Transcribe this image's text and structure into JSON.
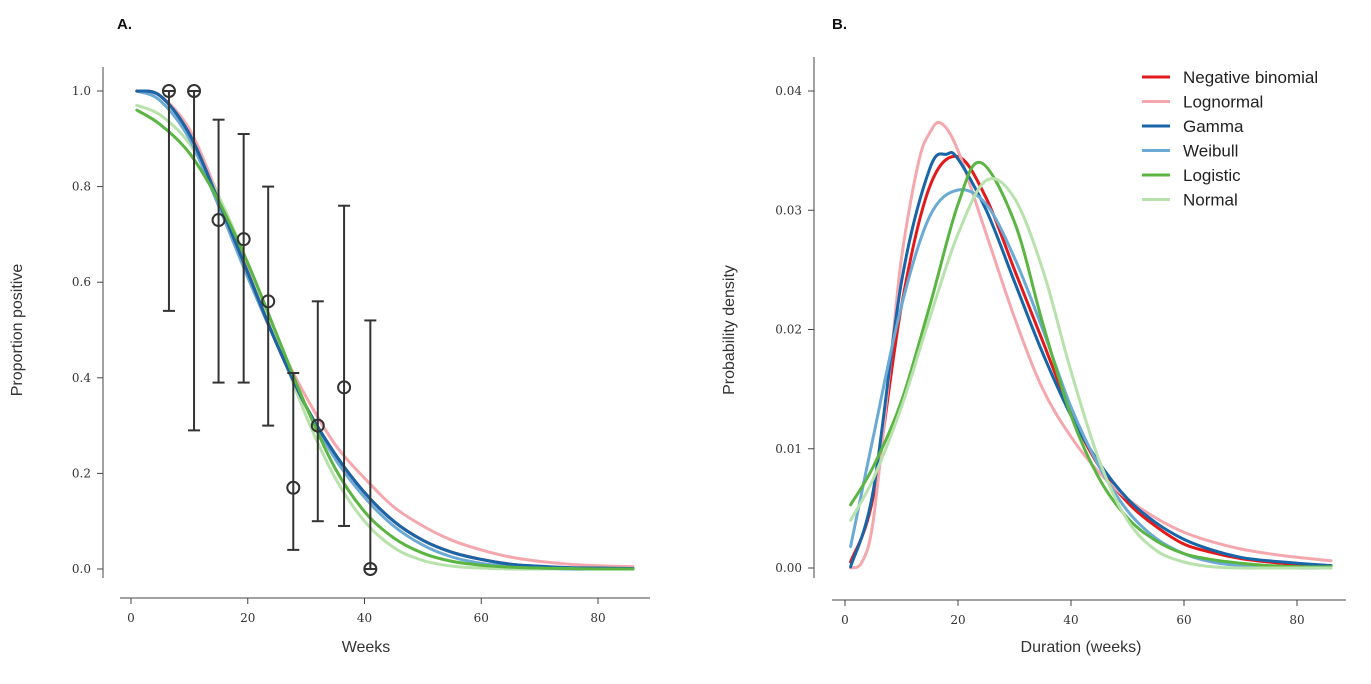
{
  "chart_data": [
    {
      "panel": "A.",
      "type": "line",
      "xlabel": "Weeks",
      "ylabel": "Proportion positive",
      "xlim": [
        0,
        88
      ],
      "ylim": [
        0,
        1
      ],
      "xticks": [
        0,
        20,
        40,
        60,
        80
      ],
      "yticks": [
        0.0,
        0.2,
        0.4,
        0.6,
        0.8,
        1.0
      ],
      "ytick_labels": [
        "0.0",
        "0.2",
        "0.4",
        "0.6",
        "0.8",
        "1.0"
      ],
      "grid": false,
      "observed": {
        "x": [
          6.5,
          10.8,
          15.0,
          19.3,
          23.5,
          27.8,
          32.0,
          36.5,
          41.0
        ],
        "y": [
          1.0,
          1.0,
          0.73,
          0.69,
          0.56,
          0.17,
          0.3,
          0.38,
          0.0
        ],
        "ci_low": [
          0.54,
          0.29,
          0.39,
          0.39,
          0.3,
          0.04,
          0.1,
          0.09,
          0.0
        ],
        "ci_high": [
          1.0,
          1.0,
          0.94,
          0.91,
          0.8,
          0.41,
          0.56,
          0.76,
          0.52
        ]
      },
      "series": [
        {
          "color": "#f4a8ae",
          "x": [
            1,
            5,
            10,
            15,
            20,
            25,
            30,
            35,
            40,
            45,
            50,
            55,
            60,
            65,
            70,
            75,
            80,
            86
          ],
          "y": [
            1.0,
            0.99,
            0.92,
            0.78,
            0.63,
            0.48,
            0.36,
            0.26,
            0.19,
            0.13,
            0.09,
            0.06,
            0.04,
            0.025,
            0.016,
            0.01,
            0.007,
            0.005
          ]
        },
        {
          "color": "#b8e2ab",
          "x": [
            1,
            5,
            10,
            15,
            20,
            25,
            30,
            35,
            40,
            45,
            50,
            55,
            60,
            65,
            70,
            75,
            80,
            86
          ],
          "y": [
            0.97,
            0.95,
            0.89,
            0.78,
            0.64,
            0.48,
            0.32,
            0.19,
            0.1,
            0.045,
            0.018,
            0.006,
            0.002,
            0.0,
            0.0,
            0.0,
            0.0,
            0.0
          ]
        },
        {
          "color": "#6aaad4",
          "x": [
            1,
            5,
            10,
            15,
            20,
            25,
            30,
            35,
            40,
            45,
            50,
            55,
            60,
            65,
            70,
            75,
            80,
            86
          ],
          "y": [
            1.0,
            0.98,
            0.9,
            0.76,
            0.61,
            0.47,
            0.34,
            0.23,
            0.15,
            0.09,
            0.05,
            0.025,
            0.012,
            0.005,
            0.002,
            0.0,
            0.0,
            0.0
          ]
        },
        {
          "color": "#e31a1c",
          "x": [
            1,
            5,
            10,
            15,
            20,
            25,
            30,
            35,
            40,
            45,
            50,
            55,
            60,
            65,
            70,
            75,
            80,
            86
          ],
          "y": [
            1.0,
            0.99,
            0.91,
            0.77,
            0.62,
            0.47,
            0.34,
            0.24,
            0.16,
            0.1,
            0.06,
            0.035,
            0.02,
            0.01,
            0.005,
            0.002,
            0.001,
            0.0
          ]
        },
        {
          "color": "#1865a8",
          "x": [
            1,
            5,
            10,
            15,
            20,
            25,
            30,
            35,
            40,
            45,
            50,
            55,
            60,
            65,
            70,
            75,
            80,
            86
          ],
          "y": [
            1.0,
            0.99,
            0.91,
            0.77,
            0.62,
            0.47,
            0.34,
            0.24,
            0.16,
            0.1,
            0.06,
            0.035,
            0.02,
            0.01,
            0.006,
            0.003,
            0.002,
            0.001
          ]
        },
        {
          "color": "#5bb543",
          "x": [
            1,
            5,
            10,
            15,
            20,
            25,
            30,
            35,
            40,
            45,
            50,
            55,
            60,
            65,
            70,
            75,
            80,
            86
          ],
          "y": [
            0.96,
            0.93,
            0.87,
            0.77,
            0.64,
            0.49,
            0.34,
            0.21,
            0.12,
            0.065,
            0.033,
            0.016,
            0.008,
            0.004,
            0.002,
            0.001,
            0.0,
            0.0
          ]
        }
      ]
    },
    {
      "panel": "B.",
      "type": "line",
      "xlabel": "Duration (weeks)",
      "ylabel": "Probability density",
      "xlim": [
        -2,
        88
      ],
      "ylim": [
        0,
        0.04
      ],
      "xticks": [
        0,
        20,
        40,
        60,
        80
      ],
      "yticks": [
        0.0,
        0.01,
        0.02,
        0.03,
        0.04
      ],
      "ytick_labels": [
        "0.00",
        "0.01",
        "0.02",
        "0.03",
        "0.04"
      ],
      "grid": false,
      "legend": "top-right",
      "series": [
        {
          "name": "Negative binomial",
          "color": "#e31a1c",
          "x": [
            1,
            5,
            10,
            15,
            20,
            25,
            30,
            35,
            40,
            45,
            50,
            55,
            60,
            65,
            70,
            75,
            80,
            86
          ],
          "y": [
            0.0005,
            0.006,
            0.022,
            0.032,
            0.0345,
            0.031,
            0.025,
            0.019,
            0.013,
            0.0085,
            0.0055,
            0.0035,
            0.002,
            0.0013,
            0.0008,
            0.0005,
            0.0003,
            0.0002
          ]
        },
        {
          "name": "Lognormal",
          "color": "#f4a8ae",
          "x": [
            1,
            3,
            5,
            8,
            10,
            13,
            15,
            17,
            20,
            25,
            30,
            35,
            40,
            45,
            50,
            55,
            60,
            65,
            70,
            75,
            80,
            86
          ],
          "y": [
            0.0,
            0.0005,
            0.004,
            0.017,
            0.026,
            0.034,
            0.0365,
            0.0373,
            0.035,
            0.028,
            0.021,
            0.015,
            0.011,
            0.008,
            0.0058,
            0.0042,
            0.003,
            0.0022,
            0.0016,
            0.0012,
            0.0009,
            0.0006
          ]
        },
        {
          "name": "Gamma",
          "color": "#1865a8",
          "x": [
            1,
            5,
            10,
            15,
            18,
            20,
            25,
            30,
            35,
            40,
            45,
            50,
            55,
            60,
            65,
            70,
            75,
            80,
            86
          ],
          "y": [
            0.0001,
            0.0065,
            0.024,
            0.0335,
            0.0347,
            0.0343,
            0.03,
            0.024,
            0.018,
            0.0128,
            0.0088,
            0.0058,
            0.0038,
            0.0024,
            0.0015,
            0.0009,
            0.0006,
            0.0004,
            0.0002
          ]
        },
        {
          "name": "Weibull",
          "color": "#6aaad4",
          "x": [
            1,
            5,
            10,
            15,
            20,
            25,
            30,
            35,
            40,
            45,
            50,
            55,
            60,
            65,
            70,
            75,
            80,
            86
          ],
          "y": [
            0.0018,
            0.011,
            0.022,
            0.0295,
            0.0317,
            0.0305,
            0.026,
            0.02,
            0.0135,
            0.0085,
            0.0048,
            0.0025,
            0.0012,
            0.0005,
            0.0002,
            0.0001,
            0.0,
            0.0
          ]
        },
        {
          "name": "Logistic",
          "color": "#5bb543",
          "x": [
            1,
            5,
            10,
            15,
            20,
            24,
            30,
            35,
            40,
            45,
            50,
            55,
            60,
            65,
            70,
            75,
            80,
            86
          ],
          "y": [
            0.0053,
            0.0085,
            0.014,
            0.022,
            0.0305,
            0.034,
            0.029,
            0.0205,
            0.0128,
            0.0075,
            0.0042,
            0.0023,
            0.0012,
            0.0007,
            0.0004,
            0.0002,
            0.0001,
            0.0001
          ]
        },
        {
          "name": "Normal",
          "color": "#b8e2ab",
          "x": [
            1,
            5,
            10,
            15,
            20,
            25,
            30,
            35,
            40,
            45,
            50,
            55,
            60,
            65,
            70,
            75,
            80,
            86
          ],
          "y": [
            0.004,
            0.0075,
            0.0135,
            0.021,
            0.028,
            0.0325,
            0.031,
            0.025,
            0.0165,
            0.009,
            0.004,
            0.0015,
            0.0005,
            0.0001,
            0.0,
            0.0,
            0.0,
            0.0
          ]
        }
      ]
    }
  ]
}
